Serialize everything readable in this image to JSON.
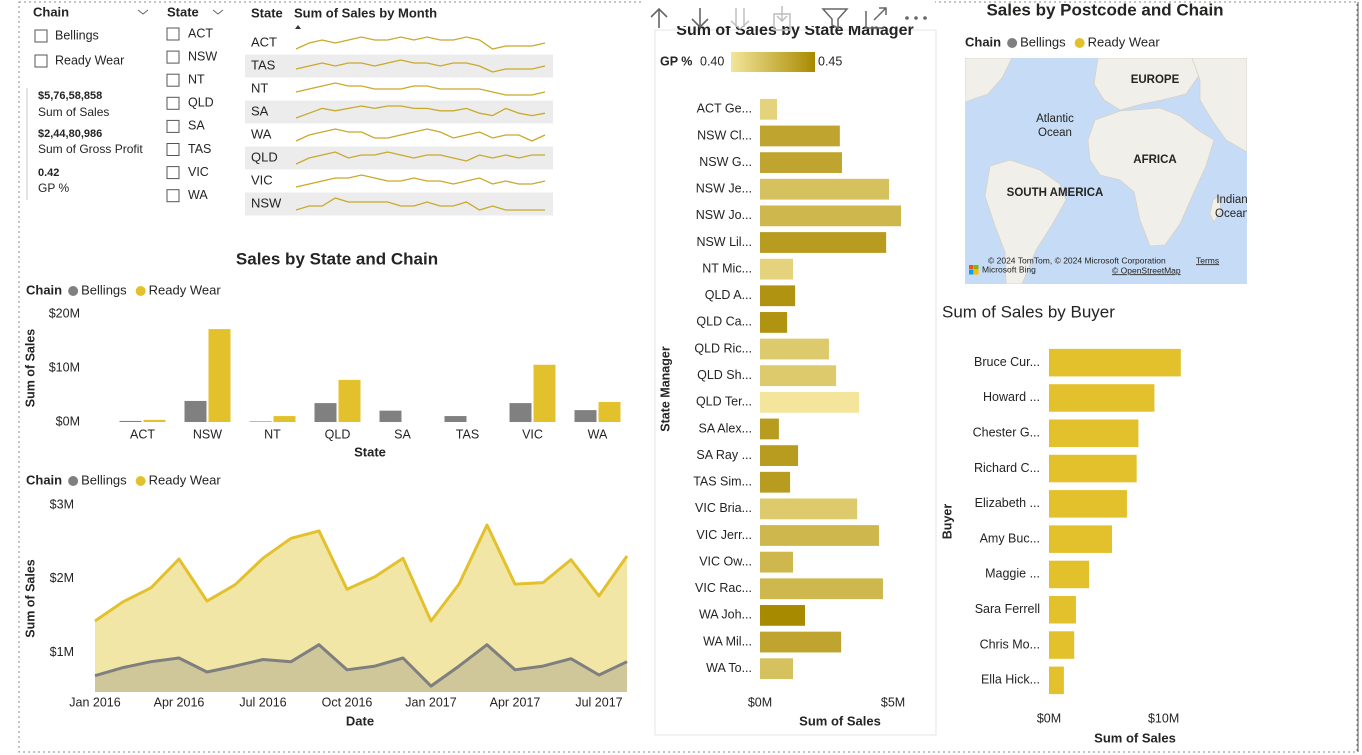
{
  "slicers": [
    {
      "title": "Chain",
      "items": [
        "Bellings",
        "Ready Wear"
      ]
    },
    {
      "title": "State",
      "items": [
        "ACT",
        "NSW",
        "NT",
        "QLD",
        "SA",
        "TAS",
        "VIC",
        "WA"
      ]
    }
  ],
  "cards": [
    {
      "value": "$5,76,58,858",
      "label": "Sum of Sales"
    },
    {
      "value": "$2,44,80,986",
      "label": "Sum of Gross Profit"
    },
    {
      "value": "0.42",
      "label": "GP %"
    }
  ],
  "table": {
    "headers": [
      "State",
      "Sum of Sales by Month"
    ],
    "line_color": "#c9a92b",
    "rows": [
      {
        "state": "ACT",
        "trend": [
          3,
          5,
          6,
          5,
          6,
          7,
          6,
          6,
          7,
          6,
          7,
          6,
          6,
          7,
          6,
          3,
          4,
          4,
          4,
          5
        ]
      },
      {
        "state": "TAS",
        "trend": [
          3,
          4,
          5,
          4,
          5,
          5,
          4,
          5,
          6,
          5,
          5,
          4,
          5,
          5,
          4,
          2,
          3,
          3,
          3,
          4
        ]
      },
      {
        "state": "NT",
        "trend": [
          4,
          5,
          6,
          7,
          6,
          6,
          5,
          5,
          5,
          6,
          6,
          5,
          5,
          5,
          5,
          4,
          3,
          3,
          3,
          4
        ]
      },
      {
        "state": "SA",
        "trend": [
          2,
          4,
          6,
          5,
          6,
          7,
          6,
          7,
          7,
          6,
          6,
          5,
          5,
          6,
          4,
          3,
          6,
          4,
          3,
          4
        ]
      },
      {
        "state": "WA",
        "trend": [
          3,
          5,
          6,
          7,
          6,
          6,
          4,
          4,
          5,
          6,
          7,
          6,
          4,
          5,
          6,
          4,
          5,
          5,
          3,
          5
        ]
      },
      {
        "state": "QLD",
        "trend": [
          3,
          5,
          6,
          7,
          5,
          6,
          6,
          7,
          6,
          5,
          6,
          6,
          5,
          4,
          6,
          5,
          6,
          5,
          6,
          6
        ]
      },
      {
        "state": "VIC",
        "trend": [
          3,
          4,
          5,
          6,
          6,
          7,
          6,
          5,
          5,
          6,
          5,
          5,
          4,
          5,
          6,
          4,
          5,
          4,
          4,
          5
        ]
      },
      {
        "state": "NSW",
        "trend": [
          3,
          4,
          4,
          6,
          5,
          5,
          5,
          5,
          4,
          4,
          5,
          4,
          4,
          5,
          3,
          4,
          3,
          3,
          3,
          3
        ]
      }
    ]
  },
  "map": {
    "title": "Sales by Postcode and Chain",
    "legend_title": "Chain",
    "legend": [
      {
        "name": "Bellings",
        "color": "#7f7f7f"
      },
      {
        "name": "Ready Wear",
        "color": "#e3c12d"
      }
    ],
    "labels": [
      "EUROPE",
      "Atlantic",
      "Ocean",
      "AFRICA",
      "SOUTH AMERICA",
      "Indian",
      "Ocean"
    ],
    "attribution": "© 2024 TomTom, © 2024 Microsoft Corporation",
    "terms": "Terms",
    "osm": "© OpenStreetMap",
    "bing": "Microsoft Bing"
  },
  "chart_data": [
    {
      "type": "bar",
      "title": "Sales by State and Chain",
      "legend_title": "Chain",
      "categories": [
        "ACT",
        "NSW",
        "NT",
        "QLD",
        "SA",
        "TAS",
        "VIC",
        "WA"
      ],
      "series": [
        {
          "name": "Bellings",
          "color": "#808080",
          "values": [
            200000,
            3900000,
            100000,
            3500000,
            2100000,
            1100000,
            3500000,
            2200000
          ]
        },
        {
          "name": "Ready Wear",
          "color": "#e3c12d",
          "values": [
            400000,
            17200000,
            1100000,
            7800000,
            null,
            null,
            10600000,
            3700000
          ]
        }
      ],
      "ylim": [
        0,
        20000000
      ],
      "yticks": [
        {
          "value": 0,
          "label": "$0M"
        },
        {
          "value": 10000000,
          "label": "$10M"
        },
        {
          "value": 20000000,
          "label": "$20M"
        }
      ],
      "xlabel": "State",
      "ylabel": "Sum of Sales"
    },
    {
      "type": "area",
      "legend_title": "Chain",
      "x": [
        "Jan 2016",
        "Feb 2016",
        "Mar 2016",
        "Apr 2016",
        "May 2016",
        "Jun 2016",
        "Jul 2016",
        "Aug 2016",
        "Sep 2016",
        "Oct 2016",
        "Nov 2016",
        "Dec 2016",
        "Jan 2017",
        "Feb 2017",
        "Mar 2017",
        "Apr 2017",
        "May 2017",
        "Jun 2017",
        "Jul 2017",
        "Aug 2017"
      ],
      "series": [
        {
          "name": "Bellings",
          "color": "#7f7f7f",
          "values": [
            690000,
            800000,
            880000,
            930000,
            740000,
            820000,
            910000,
            880000,
            1110000,
            770000,
            820000,
            930000,
            550000,
            820000,
            1110000,
            770000,
            820000,
            920000,
            700000,
            880000
          ]
        },
        {
          "name": "Ready Wear",
          "color": "#e3c12d",
          "values": [
            1430000,
            1690000,
            1880000,
            2270000,
            1700000,
            1920000,
            2280000,
            2550000,
            2650000,
            1860000,
            2030000,
            2280000,
            1430000,
            1930000,
            2730000,
            1930000,
            1950000,
            2260000,
            1770000,
            2310000
          ]
        }
      ],
      "ylim": [
        470000,
        3000000
      ],
      "yticks": [
        {
          "value": 1000000,
          "label": "$1M"
        },
        {
          "value": 2000000,
          "label": "$2M"
        },
        {
          "value": 3000000,
          "label": "$3M"
        }
      ],
      "xlabel": "Date",
      "ylabel": "Sum of Sales"
    },
    {
      "type": "hbar",
      "title": "Sum of Sales by State Manager",
      "categories": [
        "ACT Ge...",
        "NSW Cl...",
        "NSW G...",
        "NSW Je...",
        "NSW Jo...",
        "NSW Lil...",
        "NT Mic...",
        "QLD A...",
        "QLD Ca...",
        "QLD Ric...",
        "QLD Sh...",
        "QLD Ter...",
        "SA Alex...",
        "SA Ray ...",
        "TAS Sim...",
        "VIC Bria...",
        "VIC Jerr...",
        "VIC Ow...",
        "VIC Rac...",
        "WA Joh...",
        "WA Mil...",
        "WA To..."
      ],
      "values": [
        640000,
        3000000,
        3080000,
        4850000,
        5300000,
        4740000,
        1240000,
        1320000,
        1020000,
        2590000,
        2860000,
        3720000,
        710000,
        1430000,
        1130000,
        3650000,
        4470000,
        1240000,
        4620000,
        1690000,
        3050000,
        1240000
      ],
      "color_values": [
        0.41,
        0.435,
        0.435,
        0.42,
        0.425,
        0.44,
        0.41,
        0.445,
        0.445,
        0.415,
        0.415,
        0.4,
        0.44,
        0.44,
        0.44,
        0.415,
        0.425,
        0.425,
        0.425,
        0.45,
        0.435,
        0.42
      ],
      "color_scale": {
        "title": "GP %",
        "min": {
          "value": 0.4,
          "label": "0.40"
        },
        "max": {
          "value": 0.45,
          "label": "0.45"
        },
        "colors": [
          "#f3e59b",
          "#a88a00"
        ]
      },
      "xlim": [
        0,
        6500000
      ],
      "xticks": [
        {
          "value": 0,
          "label": "$0M"
        },
        {
          "value": 5000000,
          "label": "$5M"
        }
      ],
      "xlabel": "Sum of Sales",
      "ylabel": "State Manager"
    },
    {
      "type": "hbar",
      "title": "Sum of Sales by Buyer",
      "categories": [
        "Bruce Cur...",
        "Howard ...",
        "Chester G...",
        "Richard C...",
        "Elizabeth ...",
        "Amy Buc...",
        "Maggie ...",
        "Sara Ferrell",
        "Chris Mo...",
        "Ella Hick..."
      ],
      "values": [
        11500000,
        9200000,
        7800000,
        7650000,
        6800000,
        5500000,
        3500000,
        2350000,
        2200000,
        1300000
      ],
      "color": "#e3c12d",
      "xlim": [
        0,
        13000000
      ],
      "xticks": [
        {
          "value": 0,
          "label": "$0M"
        },
        {
          "value": 10000000,
          "label": "$10M"
        }
      ],
      "xlabel": "Sum of Sales",
      "ylabel": "Buyer"
    }
  ]
}
